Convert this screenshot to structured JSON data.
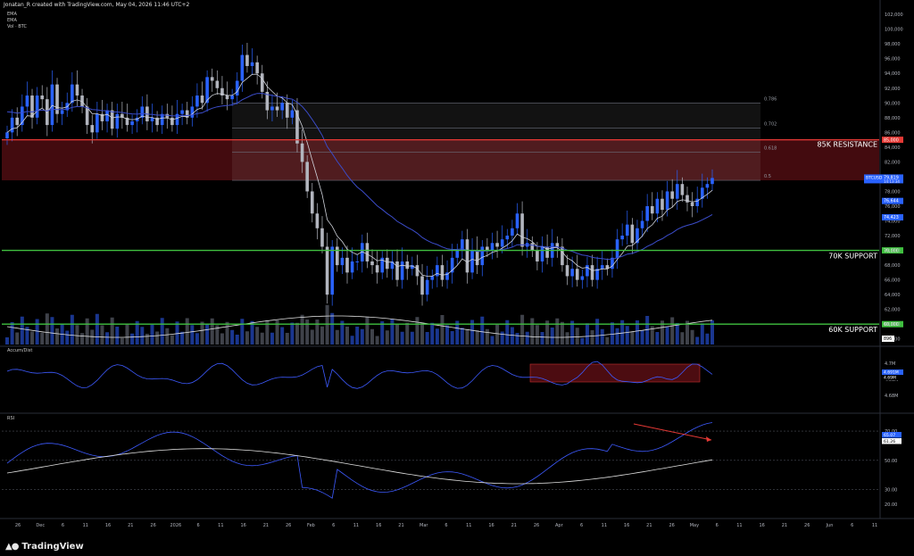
{
  "header": "Jonatan_R created with TradingView.com, May 04, 2026 11:46 UTC+2",
  "legend_main": [
    "EMA",
    "EMA",
    "Vol · BTC"
  ],
  "legend_accum": "Accum/Dist",
  "legend_rsi": "RSI",
  "brand": "TradingView",
  "colors": {
    "up": "#2962ff",
    "down": "#b2b5be",
    "ema_fast": "#d1d4dc",
    "ema_slow": "#3b4cc9",
    "support": "#3fbf3f",
    "resistance": "#e53935",
    "zone": "#5a0f14",
    "fib_box": "#1c1c1f"
  },
  "chart_data": {
    "type": "candlestick",
    "price_axis_ticks": [
      "102,000",
      "100,000",
      "98,000",
      "96,000",
      "94,000",
      "92,000",
      "90,000",
      "88,000",
      "86,000",
      "84,000",
      "82,000",
      "80,000",
      "78,000",
      "76,000",
      "74,000",
      "72,000",
      "70,000",
      "68,000",
      "66,000",
      "64,000",
      "62,000",
      "60,000",
      "58,000"
    ],
    "price_tick_values": [
      102000,
      100000,
      98000,
      96000,
      94000,
      92000,
      90000,
      88000,
      86000,
      84000,
      82000,
      80000,
      78000,
      76000,
      74000,
      72000,
      70000,
      68000,
      66000,
      64000,
      62000,
      60000,
      58000
    ],
    "x_tick_labels": [
      "26",
      "Dec",
      "6",
      "11",
      "16",
      "21",
      "26",
      "2026",
      "6",
      "11",
      "16",
      "21",
      "26",
      "Feb",
      "6",
      "11",
      "16",
      "21",
      "Mar",
      "6",
      "11",
      "16",
      "21",
      "26",
      "Apr",
      "6",
      "11",
      "16",
      "21",
      "26",
      "May",
      "6",
      "11",
      "16",
      "21",
      "26",
      "Jun",
      "6",
      "11"
    ],
    "price_range": [
      57000,
      102500
    ],
    "levels": [
      {
        "label": "85K RESISTANCE",
        "value": 85000,
        "tag": "85,000"
      },
      {
        "label": "70K SUPPORT",
        "value": 70000,
        "tag": "70,000"
      },
      {
        "label": "60K SUPPORT",
        "value": 60000,
        "tag": "60,000"
      }
    ],
    "resistance_zone": [
      79500,
      85000
    ],
    "fib_levels": [
      {
        "label": "0.786",
        "value": 90000
      },
      {
        "label": "0.702",
        "value": 86600
      },
      {
        "label": "0.618",
        "value": 83300
      },
      {
        "label": "0.5",
        "value": 79500
      }
    ],
    "price_tags": [
      {
        "label": "BTCUSD",
        "value": "79,819",
        "sub": "14:13:34",
        "price": 79819
      },
      {
        "value": "76,644",
        "price": 76644
      },
      {
        "value": "74,423",
        "price": 74423
      }
    ],
    "volume_tag": "896",
    "accum_ticks": [
      "4.7M",
      "4.69M",
      "4.68M"
    ],
    "accum_tick_values": [
      4.7,
      4.69,
      4.68
    ],
    "accum_tags": [
      "4.691M",
      "4.69M"
    ],
    "rsi_ticks": [
      "70.00",
      "50.00",
      "30.00",
      "20.00"
    ],
    "rsi_tick_values": [
      70,
      50,
      30,
      20
    ],
    "rsi_tags": [
      "65.07",
      "61.26"
    ],
    "closes": [
      86000,
      88000,
      87000,
      89500,
      91000,
      88000,
      91000,
      90500,
      87000,
      92500,
      88500,
      89000,
      90000,
      92500,
      91000,
      89500,
      87000,
      86000,
      88500,
      87500,
      89000,
      86500,
      88500,
      88000,
      87000,
      87500,
      88000,
      89500,
      87500,
      88000,
      87000,
      88500,
      88000,
      87000,
      88500,
      89000,
      88000,
      89500,
      91000,
      90000,
      93500,
      93000,
      92000,
      91000,
      90500,
      91000,
      93000,
      96500,
      95000,
      95500,
      94000,
      91500,
      89000,
      89500,
      89000,
      90000,
      88000,
      89000,
      84500,
      82000,
      78000,
      75000,
      73000,
      70500,
      64000,
      70500,
      68000,
      69000,
      67000,
      68500,
      68500,
      71000,
      68500,
      68000,
      67000,
      69000,
      67500,
      68500,
      66000,
      68500,
      67500,
      68000,
      66500,
      64000,
      66000,
      66500,
      68000,
      66000,
      67000,
      69000,
      70000,
      71500,
      67000,
      70000,
      68000,
      70500,
      70000,
      71000,
      70500,
      71500,
      72000,
      73000,
      75000,
      70500,
      71000,
      70000,
      68500,
      70500,
      69000,
      71000,
      70500,
      68000,
      66500,
      67500,
      66000,
      66500,
      68000,
      66000,
      67500,
      68000,
      67500,
      69000,
      71500,
      72000,
      73500,
      71000,
      73000,
      74000,
      76000,
      75000,
      77000,
      75500,
      78000,
      77000,
      79000,
      77500,
      76500,
      76000,
      77000,
      78500,
      79000,
      79819
    ],
    "emas": {
      "fast_label": "EMA",
      "slow_label": "EMA"
    }
  }
}
